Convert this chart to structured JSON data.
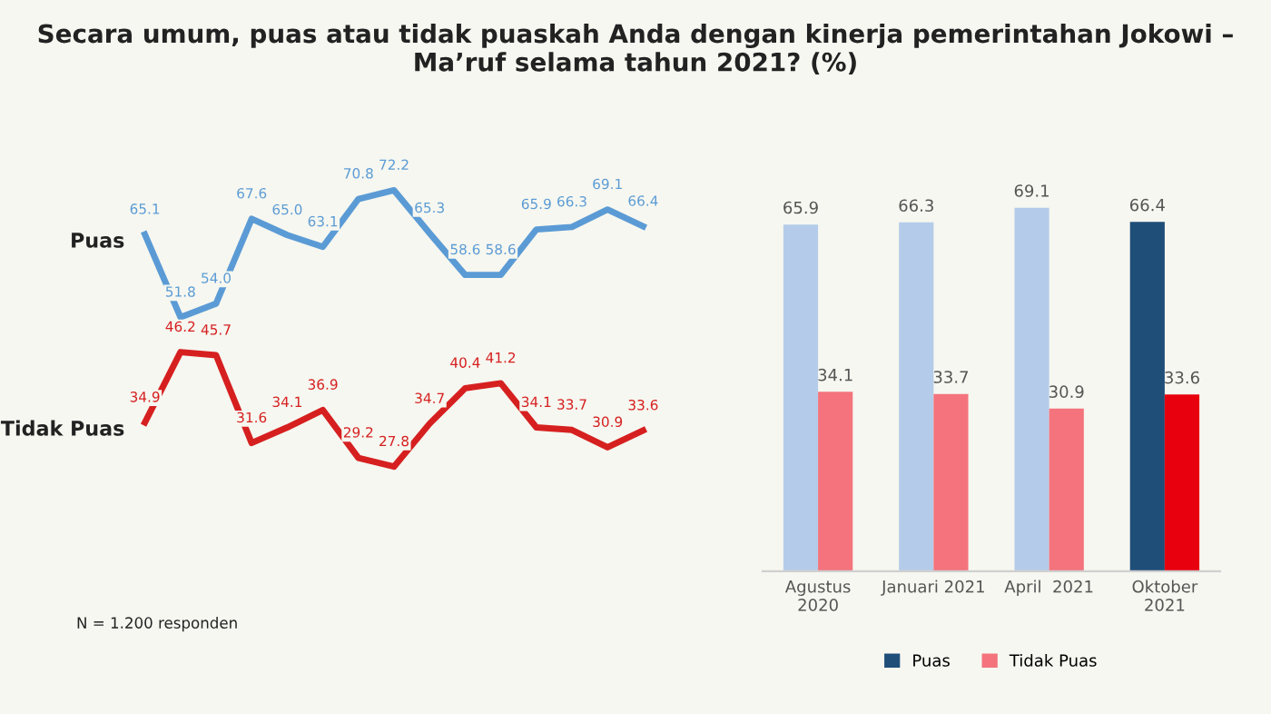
{
  "chart_data": [
    {
      "type": "line",
      "title": "Secara umum, puas atau tidak puaskah Anda dengan kinerja pemerintahan Jokowi – Ma’ruf selama tahun 2021? (%)",
      "categories": [
        null,
        null,
        null,
        null,
        null,
        null,
        null,
        null,
        null,
        null,
        null,
        null,
        null,
        null,
        null
      ],
      "series": [
        {
          "name": "Puas",
          "color": "#5b9bd5",
          "values": [
            65.1,
            51.8,
            54.0,
            67.6,
            65.0,
            63.1,
            70.8,
            72.2,
            65.3,
            58.6,
            58.6,
            65.9,
            66.3,
            69.1,
            66.4
          ],
          "value_labels": [
            "65.1",
            "51.8",
            "54.0",
            "67.6",
            "65.0",
            "63.1",
            "70.8",
            "72.2",
            "65.3",
            "58.6",
            "58.6",
            "65.9",
            "66.3",
            "69.1",
            "66.4"
          ]
        },
        {
          "name": "Tidak Puas",
          "color": "#d62020",
          "values": [
            34.9,
            46.2,
            45.7,
            31.6,
            34.1,
            36.9,
            29.2,
            27.8,
            34.7,
            40.4,
            41.2,
            34.1,
            33.7,
            30.9,
            33.6
          ],
          "value_labels": [
            "34.9",
            "46.2",
            "45.7",
            "31.6",
            "34.1",
            "36.9",
            "29.2",
            "27.8",
            "34.7",
            "40.4",
            "41.2",
            "34.1",
            "33.7",
            "30.9",
            "33.6"
          ]
        }
      ],
      "grid": false,
      "annotations": [
        "N = 1.200 responden"
      ]
    },
    {
      "type": "bar",
      "categories": [
        "Agustus\n2020",
        "Januari 2021",
        "April  2021",
        "Oktober\n2021"
      ],
      "series": [
        {
          "name": "Puas",
          "color": "#1f4e79",
          "colors": [
            "#b4cce9",
            "#b4cce9",
            "#b4cce9",
            "#1f4e79"
          ],
          "values": [
            65.9,
            66.3,
            69.1,
            66.4
          ]
        },
        {
          "name": "Tidak Puas",
          "color": "#f4737c",
          "colors": [
            "#f4737c",
            "#f4737c",
            "#f4737c",
            "#e8000e"
          ],
          "values": [
            34.1,
            33.7,
            30.9,
            33.6
          ]
        }
      ],
      "data_labels": true,
      "legend": "bottom",
      "grid": false
    }
  ]
}
